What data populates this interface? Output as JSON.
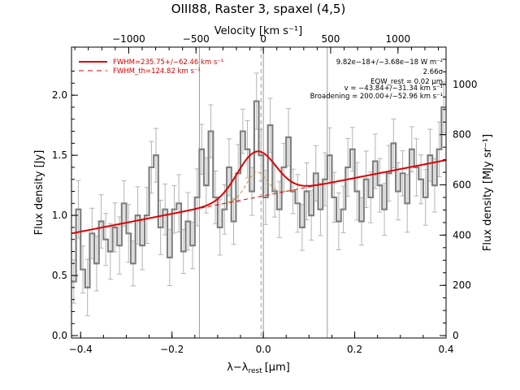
{
  "chart_data": {
    "type": "line",
    "title": "OIII88, Raster 3, spaxel (4,5)",
    "xlabel": "λ−λ_rest [μm]",
    "xlabel_main": "λ−λ",
    "xlabel_sub": "rest",
    "xlabel_unit": "[μm]",
    "ylabel": "Flux density [Jy]",
    "top_xlabel": "Velocity [km s⁻¹]",
    "right_ylabel": "Flux density [MJy sr⁻¹]",
    "xlim": [
      -0.42,
      0.4
    ],
    "ylim": [
      -0.02,
      2.4
    ],
    "x_ticks": [
      -0.4,
      -0.2,
      0.0,
      0.2,
      0.4
    ],
    "x_tick_labels": [
      "−0.4",
      "−0.2",
      "0.0",
      "0.2",
      "0.4"
    ],
    "y_ticks": [
      0.0,
      0.5,
      1.0,
      1.5,
      2.0
    ],
    "y_tick_labels": [
      "0.0",
      "0.5",
      "1.0",
      "1.5",
      "2.0"
    ],
    "top_ticks_velocity": [
      -1000,
      -500,
      0,
      500,
      1000
    ],
    "top_tick_labels": [
      "−1000",
      "−500",
      "0",
      "500",
      "1000"
    ],
    "right_ticks_mjy": [
      0,
      200,
      400,
      600,
      800,
      1000
    ],
    "right_tick_labels": [
      "0",
      "200",
      "400",
      "600",
      "800",
      "1000"
    ],
    "vertical_lines_x": [
      -0.14,
      0.0,
      0.14
    ],
    "rest_line_x": -0.005,
    "legend_position": "top-left",
    "legend": [
      {
        "label": "FWHM=235.75+/−62.46 km s⁻¹",
        "style": "solid"
      },
      {
        "label": "FWHM_th=124.82 km s⁻¹",
        "style": "dashed"
      }
    ],
    "annotations": [
      "9.82e−18+/−3.68e−18 W m⁻²",
      "2.66σ",
      "EQW_rest = 0.02 μm",
      "v = −43.84+/−31.34 km s⁻¹",
      "Broadening = 200.00+/−52.96 km s⁻¹"
    ],
    "colors": {
      "data": "#7f7f7f",
      "errorbars": "#b4b4b4",
      "fit": "#e00000",
      "instrumental": "#d48a2a",
      "vlines": "#9a9a9a"
    },
    "fit": {
      "continuum_endpoints": [
        [
          -0.42,
          0.85
        ],
        [
          0.4,
          1.46
        ]
      ],
      "gaussian_center": -0.015,
      "gaussian_peak": 0.38,
      "gaussian_sigma": 0.042,
      "instrumental_sigma": 0.022
    },
    "series": [
      {
        "name": "Spectrum",
        "x": [
          -0.415,
          -0.405,
          -0.395,
          -0.385,
          -0.375,
          -0.365,
          -0.355,
          -0.345,
          -0.335,
          -0.325,
          -0.315,
          -0.305,
          -0.295,
          -0.285,
          -0.275,
          -0.265,
          -0.255,
          -0.245,
          -0.235,
          -0.225,
          -0.215,
          -0.205,
          -0.195,
          -0.185,
          -0.175,
          -0.165,
          -0.155,
          -0.145,
          -0.135,
          -0.125,
          -0.115,
          -0.105,
          -0.095,
          -0.085,
          -0.075,
          -0.065,
          -0.055,
          -0.045,
          -0.035,
          -0.025,
          -0.015,
          -0.005,
          0.005,
          0.015,
          0.025,
          0.035,
          0.045,
          0.055,
          0.065,
          0.075,
          0.085,
          0.095,
          0.105,
          0.115,
          0.125,
          0.135,
          0.145,
          0.155,
          0.165,
          0.175,
          0.185,
          0.195,
          0.205,
          0.215,
          0.225,
          0.235,
          0.245,
          0.255,
          0.265,
          0.275,
          0.285,
          0.295,
          0.305,
          0.315,
          0.325,
          0.335,
          0.345,
          0.355,
          0.365,
          0.375,
          0.385,
          0.395
        ],
        "y": [
          0.45,
          1.05,
          0.55,
          0.4,
          0.85,
          0.6,
          0.95,
          0.8,
          0.7,
          0.9,
          0.75,
          1.1,
          0.85,
          0.6,
          1.0,
          0.75,
          1.0,
          1.4,
          1.5,
          0.9,
          1.05,
          0.65,
          1.05,
          1.1,
          0.7,
          0.95,
          0.75,
          1.15,
          1.55,
          1.25,
          1.7,
          1.15,
          0.9,
          1.05,
          1.4,
          0.95,
          1.35,
          1.7,
          1.55,
          1.2,
          1.95,
          1.5,
          1.15,
          1.75,
          1.2,
          1.05,
          1.4,
          1.65,
          1.2,
          1.1,
          0.9,
          1.2,
          1.0,
          1.35,
          1.05,
          1.3,
          1.5,
          1.15,
          0.95,
          1.05,
          1.4,
          1.55,
          1.2,
          0.95,
          1.3,
          1.15,
          1.45,
          1.25,
          1.05,
          1.35,
          1.6,
          1.2,
          1.35,
          1.1,
          1.55,
          1.4,
          1.3,
          1.15,
          1.5,
          1.25,
          1.55,
          1.9
        ]
      }
    ]
  }
}
